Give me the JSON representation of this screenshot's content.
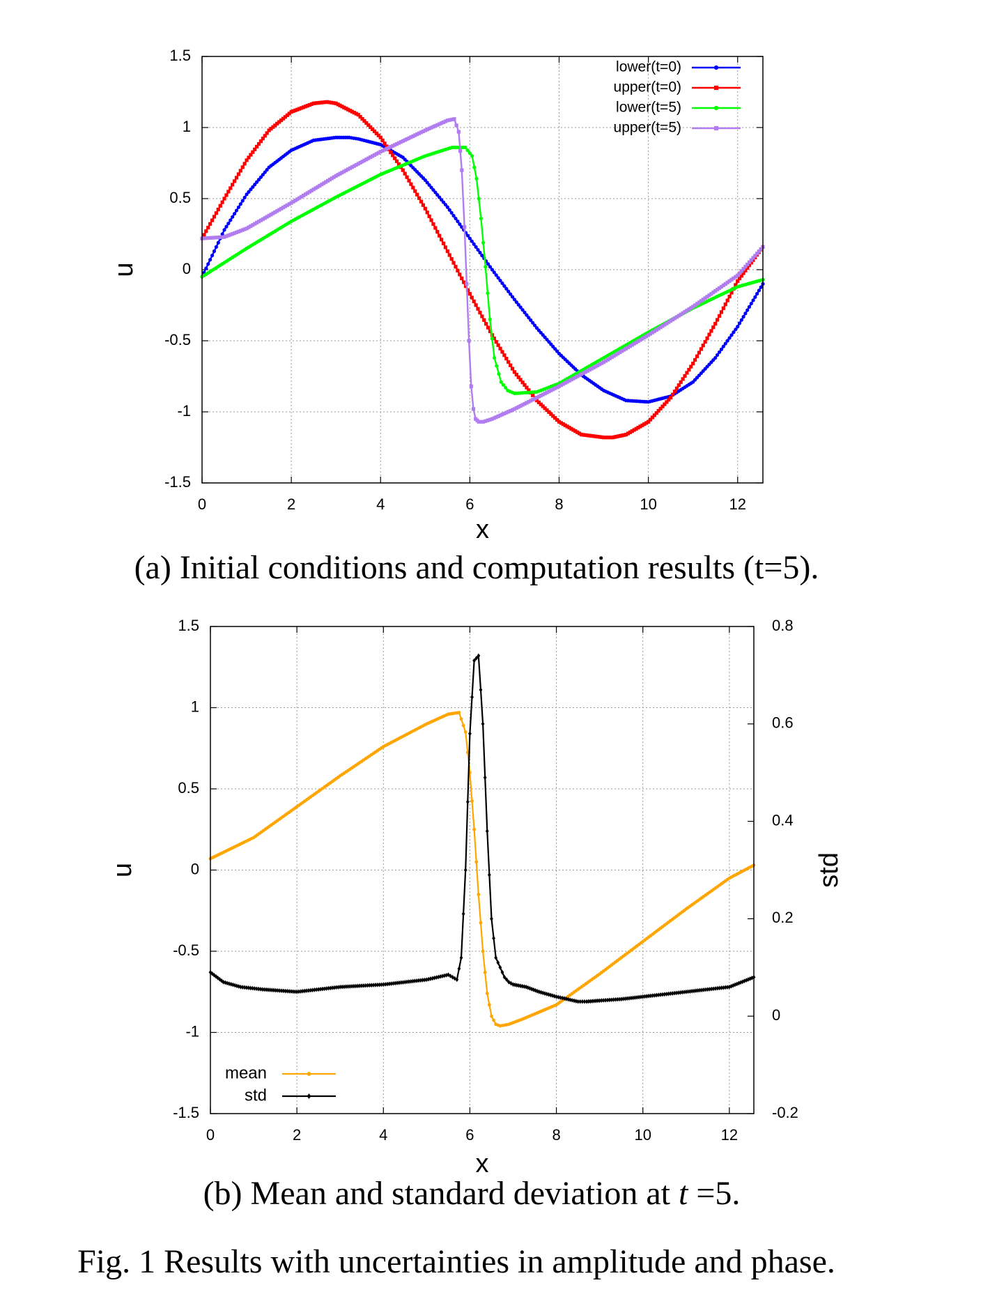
{
  "chart_data": [
    {
      "type": "line",
      "xlabel": "x",
      "ylabel": "u",
      "xlim": [
        0,
        12.566
      ],
      "ylim": [
        -1.5,
        1.5
      ],
      "xticks": [
        "0",
        "2",
        "4",
        "6",
        "8",
        "10",
        "12"
      ],
      "yticks": [
        "-1.5",
        "-1",
        "-0.5",
        "0",
        "0.5",
        "1",
        "1.5"
      ],
      "grid": true,
      "legend_position": "top-right",
      "series": [
        {
          "name": "lower(t=0)",
          "color": "#0000ff",
          "marker": "dot",
          "x": [
            0,
            0.5,
            1.0,
            1.5,
            2.0,
            2.5,
            3.0,
            3.3,
            3.5,
            4.0,
            4.5,
            5.0,
            5.5,
            6.0,
            6.5,
            7.0,
            7.5,
            8.0,
            8.5,
            9.0,
            9.5,
            10.0,
            10.5,
            11.0,
            11.5,
            12.0,
            12.566
          ],
          "y": [
            -0.05,
            0.28,
            0.53,
            0.72,
            0.84,
            0.91,
            0.93,
            0.93,
            0.92,
            0.88,
            0.79,
            0.63,
            0.44,
            0.22,
            0.0,
            -0.21,
            -0.41,
            -0.59,
            -0.74,
            -0.85,
            -0.92,
            -0.93,
            -0.89,
            -0.79,
            -0.62,
            -0.4,
            -0.1
          ]
        },
        {
          "name": "upper(t=0)",
          "color": "#ff0000",
          "marker": "square",
          "x": [
            0,
            0.5,
            1.0,
            1.5,
            2.0,
            2.5,
            2.8,
            3.0,
            3.5,
            4.0,
            4.5,
            5.0,
            5.5,
            6.0,
            6.5,
            7.0,
            7.5,
            8.0,
            8.5,
            9.0,
            9.2,
            9.5,
            10.0,
            10.5,
            11.0,
            11.5,
            12.0,
            12.566
          ],
          "y": [
            0.22,
            0.5,
            0.77,
            0.98,
            1.11,
            1.17,
            1.18,
            1.17,
            1.09,
            0.93,
            0.7,
            0.43,
            0.13,
            -0.17,
            -0.46,
            -0.72,
            -0.92,
            -1.07,
            -1.16,
            -1.18,
            -1.18,
            -1.16,
            -1.07,
            -0.9,
            -0.66,
            -0.38,
            -0.08,
            0.16
          ]
        },
        {
          "name": "lower(t=5)",
          "color": "#00ff00",
          "marker": "dot",
          "x": [
            0,
            1.0,
            2.0,
            3.0,
            4.0,
            5.0,
            5.6,
            5.9,
            6.05,
            6.15,
            6.25,
            6.35,
            6.45,
            6.55,
            6.7,
            6.85,
            7.0,
            7.5,
            8.0,
            9.0,
            10.0,
            11.0,
            12.0,
            12.566
          ],
          "y": [
            -0.05,
            0.15,
            0.34,
            0.51,
            0.67,
            0.8,
            0.86,
            0.86,
            0.8,
            0.64,
            0.36,
            0.02,
            -0.35,
            -0.62,
            -0.79,
            -0.85,
            -0.87,
            -0.86,
            -0.8,
            -0.62,
            -0.44,
            -0.27,
            -0.12,
            -0.07
          ]
        },
        {
          "name": "upper(t=5)",
          "color": "#b07cf0",
          "marker": "square",
          "x": [
            0,
            0.5,
            1.0,
            2.0,
            3.0,
            4.0,
            5.0,
            5.5,
            5.65,
            5.75,
            5.82,
            5.88,
            5.93,
            5.98,
            6.03,
            6.08,
            6.13,
            6.2,
            6.3,
            6.5,
            7.0,
            8.0,
            9.0,
            10.0,
            11.0,
            12.0,
            12.566
          ],
          "y": [
            0.22,
            0.23,
            0.29,
            0.47,
            0.66,
            0.83,
            0.98,
            1.05,
            1.06,
            0.97,
            0.7,
            0.3,
            -0.1,
            -0.5,
            -0.82,
            -0.98,
            -1.05,
            -1.07,
            -1.07,
            -1.05,
            -0.98,
            -0.82,
            -0.65,
            -0.46,
            -0.26,
            -0.04,
            0.16
          ]
        }
      ]
    },
    {
      "type": "line",
      "xlabel": "x",
      "ylabel": "u",
      "y2label": "std",
      "xlim": [
        0,
        12.566
      ],
      "ylim": [
        -1.5,
        1.5
      ],
      "y2lim": [
        -0.2,
        0.8
      ],
      "xticks": [
        "0",
        "2",
        "4",
        "6",
        "8",
        "10",
        "12"
      ],
      "yticks": [
        "-1.5",
        "-1",
        "-0.5",
        "0",
        "0.5",
        "1",
        "1.5"
      ],
      "y2ticks": [
        "-0.2",
        "0",
        "0.2",
        "0.4",
        "0.6",
        "0.8"
      ],
      "grid": true,
      "legend_position": "bottom-left",
      "series": [
        {
          "name": "mean",
          "axis": "y1",
          "color": "#ffa500",
          "marker": "dot",
          "x": [
            0,
            1.0,
            2.0,
            3.0,
            4.0,
            5.0,
            5.5,
            5.75,
            5.9,
            6.0,
            6.1,
            6.2,
            6.3,
            6.4,
            6.5,
            6.6,
            6.7,
            6.9,
            7.2,
            8.0,
            9.0,
            10.0,
            11.0,
            12.0,
            12.566
          ],
          "y": [
            0.07,
            0.2,
            0.39,
            0.58,
            0.76,
            0.9,
            0.96,
            0.97,
            0.85,
            0.6,
            0.25,
            -0.15,
            -0.5,
            -0.76,
            -0.9,
            -0.95,
            -0.96,
            -0.95,
            -0.92,
            -0.83,
            -0.64,
            -0.44,
            -0.24,
            -0.05,
            0.03
          ]
        },
        {
          "name": "std",
          "axis": "y2",
          "color": "#000000",
          "marker": "diamond",
          "x": [
            0,
            0.3,
            0.7,
            1.2,
            2.0,
            3.0,
            4.0,
            5.0,
            5.5,
            5.7,
            5.8,
            5.9,
            6.0,
            6.1,
            6.2,
            6.3,
            6.4,
            6.5,
            6.6,
            6.7,
            6.8,
            6.9,
            7.0,
            7.3,
            7.6,
            8.0,
            8.5,
            8.7,
            9.0,
            9.5,
            10.0,
            10.5,
            11.0,
            11.5,
            12.0,
            12.566
          ],
          "y": [
            0.09,
            0.07,
            0.06,
            0.055,
            0.05,
            0.06,
            0.065,
            0.075,
            0.085,
            0.075,
            0.12,
            0.3,
            0.58,
            0.73,
            0.74,
            0.6,
            0.38,
            0.2,
            0.12,
            0.1,
            0.08,
            0.07,
            0.065,
            0.06,
            0.05,
            0.04,
            0.03,
            0.03,
            0.032,
            0.035,
            0.04,
            0.045,
            0.05,
            0.055,
            0.06,
            0.08
          ]
        }
      ]
    }
  ],
  "captions": {
    "a": "(a) Initial conditions and computation results (t=5).",
    "b_prefix": "(b) Mean and standard deviation at ",
    "b_italic": "t",
    "b_suffix": " =5.",
    "fig": "Fig. 1 Results with uncertainties in amplitude and phase."
  }
}
